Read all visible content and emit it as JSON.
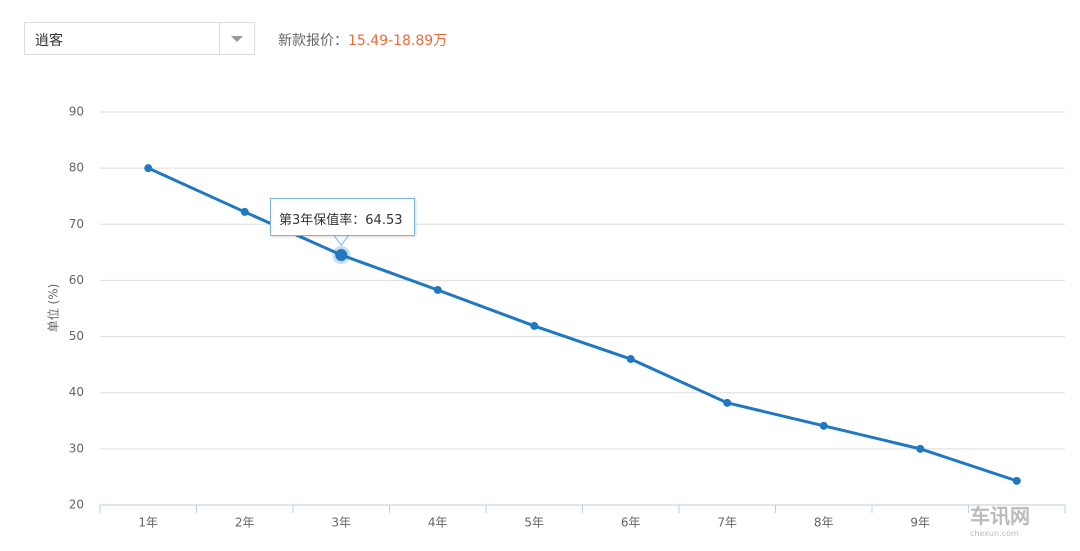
{
  "header": {
    "select": "逍客",
    "price_label": "新款报价：",
    "price": "15.49-18.89万"
  },
  "chart_data": {
    "type": "line",
    "y_label": "单位 (%)",
    "categories": [
      "1年",
      "2年",
      "3年",
      "4年",
      "5年",
      "6年",
      "7年",
      "8年",
      "9年",
      null
    ],
    "values": [
      80,
      72.2,
      64.53,
      58.3,
      51.9,
      46,
      38.2,
      34.1,
      30,
      24.3
    ],
    "color": "#1f78c1",
    "ylim": [
      20,
      90
    ],
    "yticks": [
      20,
      30,
      40,
      50,
      60,
      70,
      80,
      90
    ],
    "grid": true,
    "tooltip": {
      "index": 2,
      "label": "第3年保值率："
    }
  },
  "watermark": {
    "name": "车讯网",
    "url": "chexun.com"
  }
}
